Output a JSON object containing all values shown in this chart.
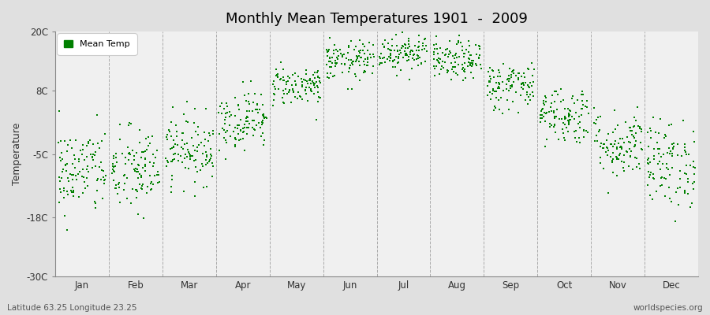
{
  "title": "Monthly Mean Temperatures 1901  -  2009",
  "ylabel": "Temperature",
  "subtitle_left": "Latitude 63.25 Longitude 23.25",
  "subtitle_right": "worldspecies.org",
  "legend_label": "Mean Temp",
  "dot_color": "#008000",
  "dot_size": 2.5,
  "fig_bg_color": "#e0e0e0",
  "plot_bg_color": "#f0f0f0",
  "grid_color": "#999999",
  "ylim": [
    -30,
    20
  ],
  "yticks": [
    -30,
    -18,
    -5,
    8,
    20
  ],
  "ytick_labels": [
    "-30C",
    "-18C",
    "-5C",
    "8C",
    "20C"
  ],
  "months": [
    "Jan",
    "Feb",
    "Mar",
    "Apr",
    "May",
    "Jun",
    "Jul",
    "Aug",
    "Sep",
    "Oct",
    "Nov",
    "Dec"
  ],
  "monthly_means": [
    -8.5,
    -8.5,
    -4,
    2,
    9,
    14,
    16,
    14,
    9,
    3,
    -3,
    -7
  ],
  "monthly_stds": [
    4.5,
    4.5,
    3.5,
    3,
    2,
    2,
    2,
    2,
    2.5,
    3,
    3.5,
    4.5
  ],
  "n_years": 109,
  "figsize": [
    9.0,
    4.0
  ],
  "dpi": 100
}
